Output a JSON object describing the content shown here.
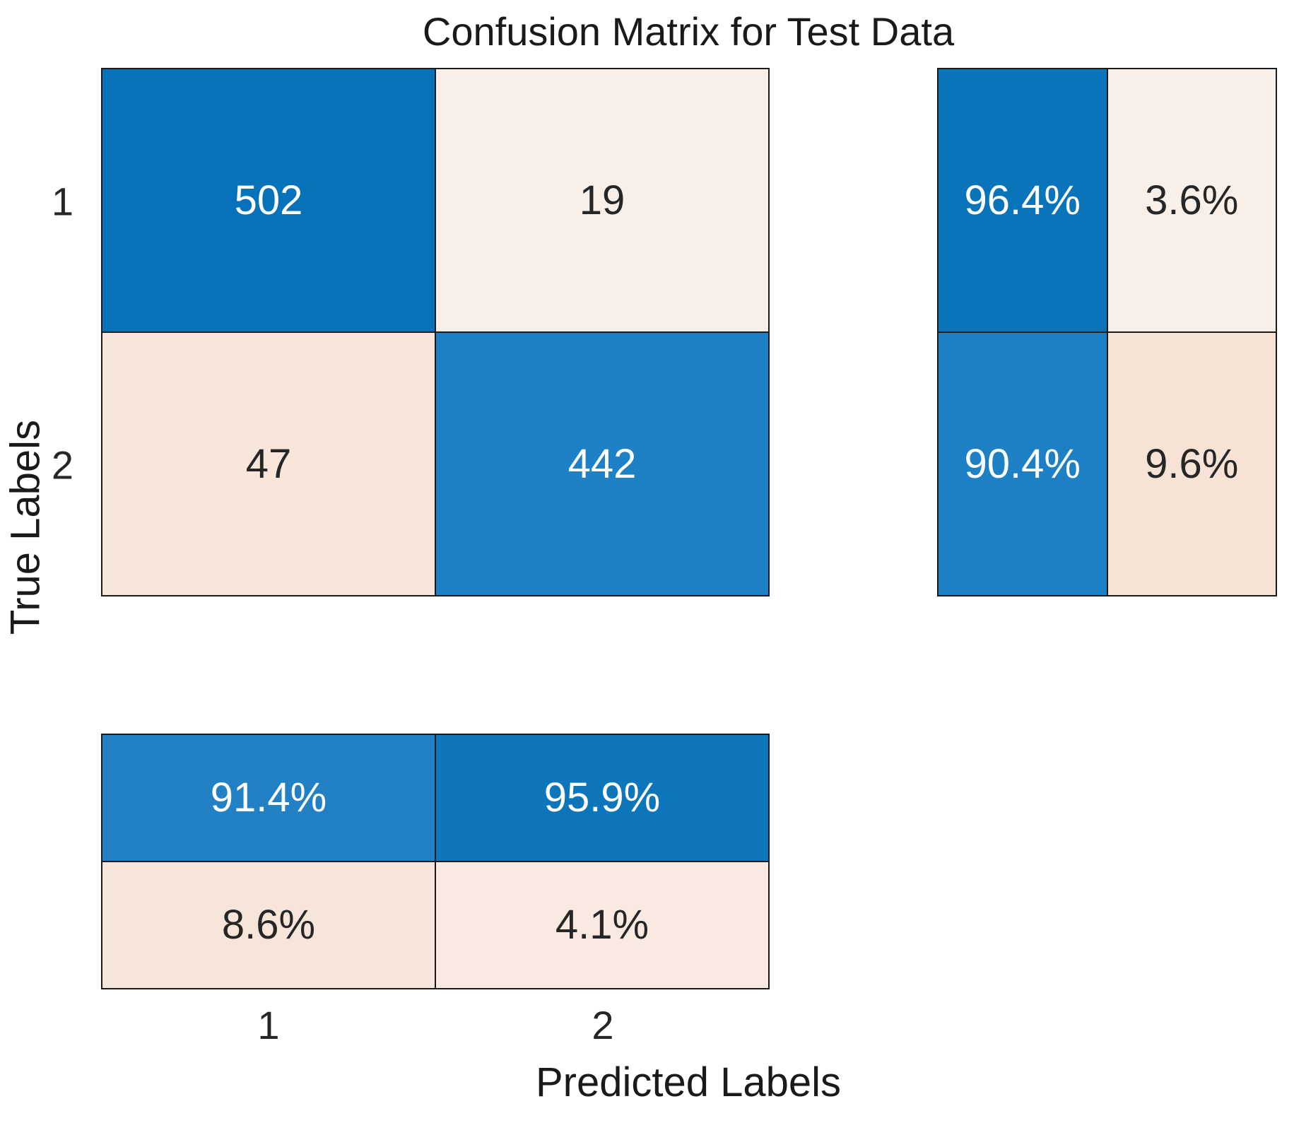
{
  "title": "Confusion Matrix for Test Data",
  "axes": {
    "x_label": "Predicted Labels",
    "y_label": "True Labels",
    "x_ticks": [
      "1",
      "2"
    ],
    "y_ticks": [
      "1",
      "2"
    ]
  },
  "colors": {
    "diagonal_blue_dark": "#0672b9",
    "diagonal_blue_mid": "#1f81c5",
    "offdiag_peach_light": "#f9efe9",
    "offdiag_peach_mid": "#f9e6db",
    "grid_line": "#1a1a1a",
    "text_dark": "#262626",
    "text_light": "#ffffff"
  },
  "chart_data": {
    "type": "heatmap",
    "variant": "confusion_matrix",
    "title": "Confusion Matrix for Test Data",
    "xlabel": "Predicted Labels",
    "ylabel": "True Labels",
    "classes": [
      "1",
      "2"
    ],
    "matrix_counts": [
      [
        502,
        19
      ],
      [
        47,
        442
      ]
    ],
    "row_summary_percent": [
      [
        96.4,
        3.6
      ],
      [
        90.4,
        9.6
      ]
    ],
    "column_summary_percent_rows": [
      [
        91.4,
        95.9
      ],
      [
        8.6,
        4.1
      ]
    ],
    "legend_position": "none",
    "grid": "cell-borders"
  },
  "cells": {
    "main": [
      {
        "label": "502",
        "style": "background:#0672b9;color:#ffffff"
      },
      {
        "label": "19",
        "style": "background:#f9efe9;color:#262626"
      },
      {
        "label": "47",
        "style": "background:#f9e6db;color:#262626"
      },
      {
        "label": "442",
        "style": "background:#1f81c5;color:#ffffff"
      }
    ],
    "row_summary": [
      {
        "label": "96.4%",
        "style": "background:#0974ba;color:#ffffff"
      },
      {
        "label": "3.6%",
        "style": "background:#f9efe9;color:#262626"
      },
      {
        "label": "90.4%",
        "style": "background:#1e80c4;color:#ffffff"
      },
      {
        "label": "9.6%",
        "style": "background:#f7e3d5;color:#262626"
      }
    ],
    "col_summary": [
      {
        "label": "91.4%",
        "style": "background:#2181c4;color:#ffffff"
      },
      {
        "label": "95.9%",
        "style": "background:#0d75ba;color:#ffffff"
      },
      {
        "label": "8.6%",
        "style": "background:#f8e5da;color:#262626"
      },
      {
        "label": "4.1%",
        "style": "background:#f9eae1;color:#262626"
      }
    ]
  }
}
